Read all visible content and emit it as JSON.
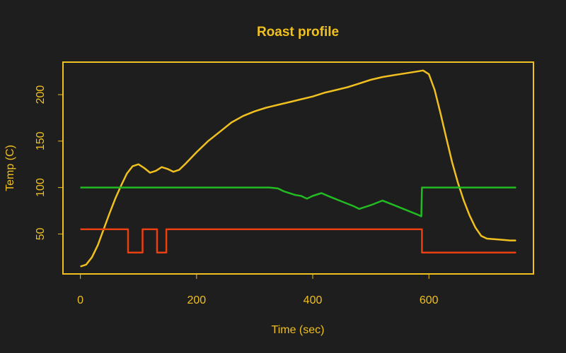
{
  "chart_data": {
    "type": "line",
    "title": "Roast profile",
    "x_label": "Time (sec)",
    "y_label": "Temp (C)",
    "xlim": [
      -30,
      780
    ],
    "ylim": [
      7,
      235
    ],
    "xticks": [
      0,
      200,
      400,
      600
    ],
    "yticks": [
      50,
      100,
      150,
      200
    ],
    "axis_color": "#f0c020",
    "background": "#1e1e1e",
    "series": [
      {
        "color": "#f0c020",
        "x": [
          0,
          10,
          20,
          30,
          40,
          50,
          60,
          70,
          80,
          90,
          100,
          110,
          120,
          130,
          140,
          150,
          160,
          170,
          180,
          200,
          220,
          240,
          260,
          280,
          300,
          320,
          340,
          360,
          380,
          400,
          420,
          440,
          460,
          480,
          500,
          520,
          540,
          560,
          580,
          590,
          600,
          610,
          620,
          630,
          640,
          650,
          660,
          670,
          680,
          690,
          700,
          720,
          740,
          750
        ],
        "values": [
          15,
          17,
          25,
          38,
          55,
          72,
          88,
          102,
          115,
          123,
          125,
          121,
          116,
          118,
          122,
          120,
          117,
          119,
          125,
          138,
          150,
          160,
          170,
          177,
          182,
          186,
          189,
          192,
          195,
          198,
          202,
          205,
          208,
          212,
          216,
          219,
          221,
          223,
          225,
          226,
          222,
          205,
          180,
          153,
          127,
          105,
          86,
          70,
          57,
          48,
          45,
          44,
          43,
          43
        ]
      },
      {
        "color": "#22bb22",
        "x": [
          0,
          325,
          340,
          350,
          370,
          380,
          390,
          400,
          415,
          430,
          450,
          470,
          480,
          500,
          520,
          540,
          560,
          580,
          587,
          588,
          750
        ],
        "values": [
          100,
          100,
          99,
          96,
          92,
          91,
          88,
          91,
          94,
          90,
          85,
          80,
          77,
          81,
          86,
          81,
          76,
          71,
          69,
          100,
          100
        ]
      },
      {
        "color": "#e84010",
        "x": [
          0,
          82,
          82,
          107,
          107,
          132,
          132,
          148,
          148,
          588,
          588,
          750
        ],
        "values": [
          55,
          55,
          30,
          30,
          55,
          55,
          30,
          30,
          55,
          55,
          30,
          30
        ]
      }
    ]
  }
}
